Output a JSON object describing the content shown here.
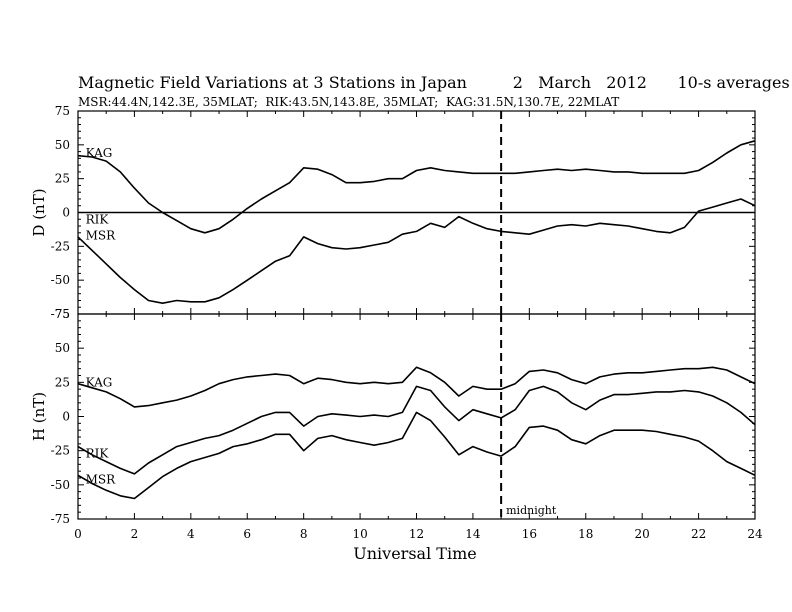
{
  "chart_data": [
    {
      "type": "line",
      "title": "Magnetic Field Variations at 3 Stations in Japan         2   March   2012      10-s averages",
      "subtitle": "MSR:44.4N,142.3E, 35MLAT;  RIK:43.5N,143.8E, 35MLAT;  KAG:31.5N,130.7E, 22MLAT",
      "xlabel": "Universal Time",
      "ylabel": "D (nT)",
      "xlim": [
        0,
        24
      ],
      "ylim": [
        -75,
        75
      ],
      "xticks": [
        "0",
        "2",
        "4",
        "6",
        "8",
        "10",
        "12",
        "14",
        "16",
        "18",
        "20",
        "22",
        "24"
      ],
      "yticks": [
        "75",
        "50",
        "25",
        "0",
        "-25",
        "-50",
        "-75"
      ],
      "zero_line": true,
      "marker": {
        "x": 15,
        "style": "dashed"
      },
      "series": [
        {
          "name": "KAG",
          "label_at": [
            0.2,
            44
          ],
          "x": [
            0,
            0.5,
            1,
            1.5,
            2,
            2.5,
            3,
            3.5,
            4,
            4.5,
            5,
            5.5,
            6,
            6.5,
            7,
            7.5,
            8,
            8.5,
            9,
            9.5,
            10,
            10.5,
            11,
            11.5,
            12,
            12.5,
            13,
            13.5,
            14,
            14.5,
            15,
            15.5,
            16,
            16.5,
            17,
            17.5,
            18,
            18.5,
            19,
            19.5,
            20,
            20.5,
            21,
            21.5,
            22,
            22.5,
            23,
            23.5,
            24
          ],
          "y": [
            42,
            41,
            38,
            30,
            18,
            7,
            0,
            -6,
            -12,
            -15,
            -12,
            -5,
            3,
            10,
            16,
            22,
            33,
            32,
            28,
            22,
            22,
            23,
            25,
            25,
            31,
            33,
            31,
            30,
            29,
            29,
            29,
            29,
            30,
            31,
            32,
            31,
            32,
            31,
            30,
            30,
            29,
            29,
            29,
            29,
            31,
            37,
            44,
            50,
            53
          ]
        },
        {
          "name": "RIK",
          "label_at": [
            0.2,
            -5
          ],
          "x": [],
          "y": []
        },
        {
          "name": "MSR",
          "label_at": [
            0.2,
            -17
          ],
          "x": [
            0,
            0.5,
            1,
            1.5,
            2,
            2.5,
            3,
            3.5,
            4,
            4.5,
            5,
            5.5,
            6,
            6.5,
            7,
            7.5,
            8,
            8.5,
            9,
            9.5,
            10,
            10.5,
            11,
            11.5,
            12,
            12.5,
            13,
            13.5,
            14,
            14.5,
            15,
            15.5,
            16,
            16.5,
            17,
            17.5,
            18,
            18.5,
            19,
            19.5,
            20,
            20.5,
            21,
            21.5,
            22,
            22.5,
            23,
            23.5,
            24
          ],
          "y": [
            -18,
            -28,
            -38,
            -48,
            -57,
            -65,
            -67,
            -65,
            -66,
            -66,
            -63,
            -57,
            -50,
            -43,
            -36,
            -32,
            -18,
            -23,
            -26,
            -27,
            -26,
            -24,
            -22,
            -16,
            -14,
            -8,
            -11,
            -3,
            -8,
            -12,
            -14,
            -15,
            -16,
            -13,
            -10,
            -9,
            -10,
            -8,
            -9,
            -10,
            -12,
            -14,
            -15,
            -11,
            1,
            4,
            7,
            10,
            5
          ]
        }
      ]
    },
    {
      "type": "line",
      "xlabel": "Universal Time",
      "ylabel": "H (nT)",
      "xlim": [
        0,
        24
      ],
      "ylim": [
        -75,
        75
      ],
      "xticks": [
        "0",
        "2",
        "4",
        "6",
        "8",
        "10",
        "12",
        "14",
        "16",
        "18",
        "20",
        "22",
        "24"
      ],
      "yticks": [
        "75",
        "50",
        "25",
        "0",
        "-25",
        "-50",
        "-75"
      ],
      "marker": {
        "x": 15,
        "style": "dashed",
        "label": "midnight"
      },
      "series": [
        {
          "name": "KAG",
          "label_at": [
            0.2,
            25
          ],
          "x": [
            0,
            0.5,
            1,
            1.5,
            2,
            2.5,
            3,
            3.5,
            4,
            4.5,
            5,
            5.5,
            6,
            6.5,
            7,
            7.5,
            8,
            8.5,
            9,
            9.5,
            10,
            10.5,
            11,
            11.5,
            12,
            12.5,
            13,
            13.5,
            14,
            14.5,
            15,
            15.5,
            16,
            16.5,
            17,
            17.5,
            18,
            18.5,
            19,
            19.5,
            20,
            20.5,
            21,
            21.5,
            22,
            22.5,
            23,
            23.5,
            24
          ],
          "y": [
            24,
            21,
            18,
            13,
            7,
            8,
            10,
            12,
            15,
            19,
            24,
            27,
            29,
            30,
            31,
            30,
            24,
            28,
            27,
            25,
            24,
            25,
            24,
            25,
            36,
            32,
            25,
            15,
            22,
            20,
            20,
            24,
            33,
            34,
            32,
            27,
            24,
            29,
            31,
            32,
            32,
            33,
            34,
            35,
            35,
            36,
            34,
            29,
            24
          ]
        },
        {
          "name": "RIK",
          "label_at": [
            0.2,
            -27
          ],
          "x": [
            0,
            0.5,
            1,
            1.5,
            2,
            2.5,
            3,
            3.5,
            4,
            4.5,
            5,
            5.5,
            6,
            6.5,
            7,
            7.5,
            8,
            8.5,
            9,
            9.5,
            10,
            10.5,
            11,
            11.5,
            12,
            12.5,
            13,
            13.5,
            14,
            14.5,
            15,
            15.5,
            16,
            16.5,
            17,
            17.5,
            18,
            18.5,
            19,
            19.5,
            20,
            20.5,
            21,
            21.5,
            22,
            22.5,
            23,
            23.5,
            24
          ],
          "y": [
            -22,
            -28,
            -33,
            -38,
            -42,
            -34,
            -28,
            -22,
            -19,
            -16,
            -14,
            -10,
            -5,
            0,
            3,
            3,
            -7,
            0,
            2,
            1,
            0,
            1,
            0,
            3,
            22,
            19,
            7,
            -3,
            5,
            2,
            -1,
            5,
            19,
            22,
            18,
            10,
            5,
            12,
            16,
            16,
            17,
            18,
            18,
            19,
            18,
            15,
            10,
            3,
            -6
          ]
        },
        {
          "name": "MSR",
          "label_at": [
            0.2,
            -46
          ],
          "x": [
            0,
            0.5,
            1,
            1.5,
            2,
            2.5,
            3,
            3.5,
            4,
            4.5,
            5,
            5.5,
            6,
            6.5,
            7,
            7.5,
            8,
            8.5,
            9,
            9.5,
            10,
            10.5,
            11,
            11.5,
            12,
            12.5,
            13,
            13.5,
            14,
            14.5,
            15,
            15.5,
            16,
            16.5,
            17,
            17.5,
            18,
            18.5,
            19,
            19.5,
            20,
            20.5,
            21,
            21.5,
            22,
            22.5,
            23,
            23.5,
            24
          ],
          "y": [
            -43,
            -49,
            -54,
            -58,
            -60,
            -52,
            -44,
            -38,
            -33,
            -30,
            -27,
            -22,
            -20,
            -17,
            -13,
            -13,
            -25,
            -16,
            -14,
            -17,
            -19,
            -21,
            -19,
            -16,
            3,
            -3,
            -15,
            -28,
            -22,
            -26,
            -29,
            -22,
            -8,
            -7,
            -10,
            -17,
            -20,
            -14,
            -10,
            -10,
            -10,
            -11,
            -13,
            -15,
            -18,
            -25,
            -33,
            -38,
            -43
          ]
        }
      ]
    }
  ]
}
